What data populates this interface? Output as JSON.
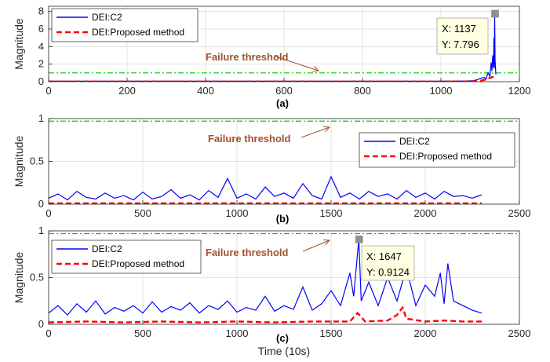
{
  "chart_data": [
    {
      "type": "line",
      "sublabel": "(a)",
      "ylabel": "Magnitude",
      "xlabel": "",
      "xlim": [
        0,
        1200
      ],
      "ylim": [
        0,
        8.6
      ],
      "xticks": [
        0,
        200,
        400,
        600,
        800,
        1000,
        1200
      ],
      "xtick_labels": [
        "0",
        "200",
        "400",
        "600",
        "800",
        "1000",
        "1200"
      ],
      "yticks": [
        0,
        2,
        4,
        6,
        8
      ],
      "ytick_labels": [
        "0",
        "2",
        "4",
        "6",
        "8"
      ],
      "grid": true,
      "legend_position": "top-left",
      "threshold": {
        "y": 1,
        "label": "Failure threshold",
        "color": "#00cc00"
      },
      "series": [
        {
          "name": "DEI:C2",
          "color": "#0000ff",
          "style": "solid",
          "x": [
            0,
            100,
            200,
            300,
            400,
            500,
            600,
            700,
            800,
            900,
            1000,
            1050,
            1080,
            1090,
            1100,
            1110,
            1115,
            1120,
            1125,
            1128,
            1130,
            1132,
            1134,
            1135,
            1136,
            1137,
            1138,
            1140
          ],
          "y": [
            0.05,
            0.06,
            0.05,
            0.06,
            0.05,
            0.06,
            0.05,
            0.05,
            0.06,
            0.05,
            0.06,
            0.07,
            0.1,
            0.2,
            0.35,
            0.5,
            0.3,
            1.0,
            0.6,
            2.2,
            1.2,
            3.0,
            1.6,
            5.0,
            1.5,
            7.796,
            2.5,
            0.8
          ]
        },
        {
          "name": "DEI:Proposed method",
          "color": "#ff0000",
          "style": "dashed",
          "x": [
            0,
            200,
            400,
            600,
            800,
            1000,
            1080,
            1100,
            1110,
            1120,
            1130,
            1137,
            1140
          ],
          "y": [
            0.02,
            0.02,
            0.02,
            0.02,
            0.02,
            0.02,
            0.03,
            0.1,
            0.2,
            0.35,
            0.5,
            0.6,
            0.6
          ]
        }
      ],
      "datatip": {
        "x": 1137,
        "y": 7.796,
        "x_text": "X: 1137",
        "y_text": "Y: 7.796"
      }
    },
    {
      "type": "line",
      "sublabel": "(b)",
      "ylabel": "Magnitude",
      "xlabel": "",
      "xlim": [
        0,
        2500
      ],
      "ylim": [
        0,
        1
      ],
      "xticks": [
        0,
        500,
        1000,
        1500,
        2000,
        2500
      ],
      "xtick_labels": [
        "0",
        "500",
        "1000",
        "1500",
        "2000",
        "2500"
      ],
      "yticks": [
        0,
        0.5,
        1
      ],
      "ytick_labels": [
        "0",
        "0.5",
        "1"
      ],
      "grid": true,
      "legend_position": "top-right",
      "threshold": {
        "y": 0.97,
        "label": "Failure threshold",
        "color": "#00cc00"
      },
      "series": [
        {
          "name": "DEI:C2",
          "color": "#0000ff",
          "style": "solid",
          "x": [
            0,
            50,
            100,
            150,
            200,
            250,
            300,
            350,
            400,
            450,
            500,
            550,
            600,
            650,
            700,
            750,
            800,
            850,
            900,
            950,
            1000,
            1050,
            1100,
            1150,
            1200,
            1250,
            1300,
            1350,
            1400,
            1450,
            1500,
            1550,
            1600,
            1650,
            1700,
            1750,
            1800,
            1850,
            1900,
            1950,
            2000,
            2050,
            2100,
            2150,
            2200,
            2250,
            2300
          ],
          "y": [
            0.07,
            0.12,
            0.05,
            0.15,
            0.08,
            0.06,
            0.13,
            0.07,
            0.1,
            0.05,
            0.14,
            0.06,
            0.09,
            0.17,
            0.07,
            0.11,
            0.05,
            0.16,
            0.08,
            0.3,
            0.07,
            0.12,
            0.06,
            0.2,
            0.09,
            0.13,
            0.07,
            0.24,
            0.1,
            0.06,
            0.32,
            0.08,
            0.13,
            0.06,
            0.15,
            0.09,
            0.12,
            0.06,
            0.16,
            0.08,
            0.13,
            0.06,
            0.15,
            0.09,
            0.1,
            0.07,
            0.11
          ]
        },
        {
          "name": "DEI:Proposed method",
          "color": "#ff0000",
          "style": "dashed",
          "x": [
            0,
            500,
            1000,
            1500,
            2000,
            2300
          ],
          "y": [
            0.01,
            0.01,
            0.01,
            0.01,
            0.01,
            0.01
          ]
        }
      ]
    },
    {
      "type": "line",
      "sublabel": "(c)",
      "ylabel": "Magnitude",
      "xlabel": "Time (10s)",
      "xlim": [
        0,
        2500
      ],
      "ylim": [
        0,
        1
      ],
      "xticks": [
        0,
        500,
        1000,
        1500,
        2000,
        2500
      ],
      "xtick_labels": [
        "0",
        "500",
        "1000",
        "1500",
        "2000",
        "2500"
      ],
      "yticks": [
        0,
        0.5,
        1
      ],
      "ytick_labels": [
        "0",
        "0.5",
        "1"
      ],
      "grid": true,
      "legend_position": "top-left",
      "threshold": {
        "y": 0.97,
        "label": "Failure threshold",
        "color": "#00cc00"
      },
      "series": [
        {
          "name": "DEI:C2",
          "color": "#0000ff",
          "style": "solid",
          "x": [
            0,
            50,
            100,
            150,
            200,
            250,
            300,
            350,
            400,
            450,
            500,
            550,
            600,
            650,
            700,
            750,
            800,
            850,
            900,
            950,
            1000,
            1050,
            1100,
            1150,
            1200,
            1250,
            1300,
            1350,
            1400,
            1450,
            1500,
            1550,
            1600,
            1620,
            1647,
            1660,
            1700,
            1750,
            1800,
            1850,
            1900,
            1950,
            2000,
            2050,
            2080,
            2100,
            2120,
            2150,
            2200,
            2250,
            2300
          ],
          "y": [
            0.12,
            0.2,
            0.1,
            0.22,
            0.13,
            0.25,
            0.11,
            0.18,
            0.14,
            0.2,
            0.12,
            0.24,
            0.13,
            0.19,
            0.15,
            0.23,
            0.12,
            0.2,
            0.16,
            0.25,
            0.13,
            0.18,
            0.15,
            0.3,
            0.14,
            0.2,
            0.16,
            0.4,
            0.15,
            0.22,
            0.36,
            0.2,
            0.55,
            0.3,
            0.9124,
            0.25,
            0.45,
            0.2,
            0.5,
            0.25,
            0.6,
            0.2,
            0.42,
            0.3,
            0.55,
            0.22,
            0.65,
            0.25,
            0.2,
            0.15,
            0.12
          ]
        },
        {
          "name": "DEI:Proposed method",
          "color": "#ff0000",
          "style": "dashed",
          "x": [
            0,
            200,
            400,
            600,
            800,
            1000,
            1200,
            1400,
            1600,
            1640,
            1660,
            1680,
            1800,
            1850,
            1880,
            1900,
            2000,
            2100,
            2200,
            2300
          ],
          "y": [
            0.02,
            0.03,
            0.02,
            0.03,
            0.02,
            0.03,
            0.02,
            0.03,
            0.03,
            0.12,
            0.08,
            0.03,
            0.04,
            0.1,
            0.18,
            0.06,
            0.03,
            0.04,
            0.03,
            0.03
          ]
        }
      ],
      "datatip": {
        "x": 1647,
        "y": 0.9124,
        "x_text": "X: 1647",
        "y_text": "Y: 0.9124"
      }
    }
  ]
}
